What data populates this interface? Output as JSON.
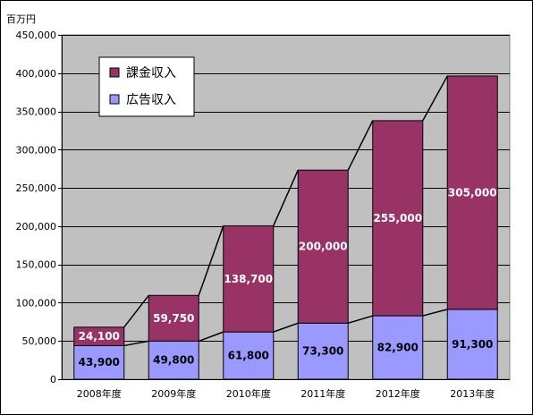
{
  "chart_data": {
    "type": "bar",
    "stacked": true,
    "unit_label": "百万円",
    "categories": [
      "2008年度",
      "2009年度",
      "2010年度",
      "2011年度",
      "2012年度",
      "2013年度"
    ],
    "series": [
      {
        "name": "広告収入",
        "values": [
          43900,
          49800,
          61800,
          73300,
          82900,
          91300
        ],
        "labels": [
          "43,900",
          "49,800",
          "61,800",
          "73,300",
          "82,900",
          "91,300"
        ],
        "color": "#9999ff",
        "label_color": "#000000"
      },
      {
        "name": "課金収入",
        "values": [
          24100,
          59750,
          138700,
          200000,
          255000,
          305000
        ],
        "labels": [
          "24,100",
          "59,750",
          "138,700",
          "200,000",
          "255,000",
          "305,000"
        ],
        "color": "#993366",
        "label_color": "#ffffff"
      }
    ],
    "ylim": [
      0,
      450000
    ],
    "yticks": [
      0,
      50000,
      100000,
      150000,
      200000,
      250000,
      300000,
      350000,
      400000,
      450000
    ],
    "ytick_labels": [
      "0",
      "50,000",
      "100,000",
      "150,000",
      "200,000",
      "250,000",
      "300,000",
      "350,000",
      "400,000",
      "450,000"
    ],
    "grid": true,
    "plot_background": "#c0c0c0",
    "series_lines": true,
    "legend_position": "top-left",
    "legend_order": [
      "課金収入",
      "広告収入"
    ]
  }
}
